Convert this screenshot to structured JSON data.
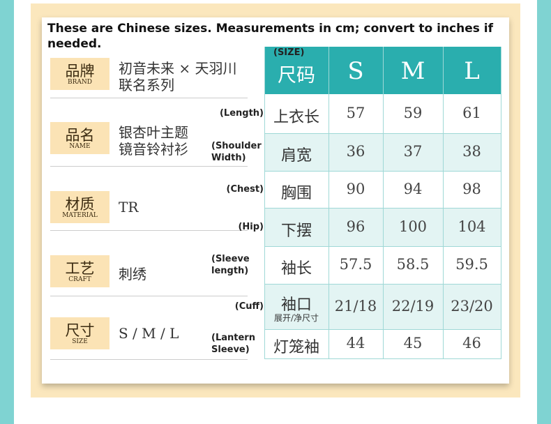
{
  "header": {
    "note": "These are Chinese sizes. Measurements in cm; convert to inches if needed."
  },
  "info": {
    "rows": [
      {
        "label": "品牌",
        "label_en": "BRAND",
        "value": [
          "初音未来 × 天羽川",
          "联名系列"
        ]
      },
      {
        "label": "品名",
        "label_en": "NAME",
        "value": [
          "银杏叶主题",
          "镜音铃衬衫"
        ]
      },
      {
        "label": "材质",
        "label_en": "MATERIAL",
        "value": [
          "TR"
        ]
      },
      {
        "label": "工艺",
        "label_en": "CRAFT",
        "value": [
          "刺绣"
        ]
      },
      {
        "label": "尺寸",
        "label_en": "SIZE",
        "value": [
          "S / M / L"
        ]
      }
    ]
  },
  "size_table": {
    "header": {
      "label_en": "(SIZE)",
      "label": "尺码",
      "sizes": [
        "S",
        "M",
        "L"
      ]
    },
    "rows": [
      {
        "label_en": [
          "(Length)"
        ],
        "label": "上衣长",
        "values": [
          "57",
          "59",
          "61"
        ]
      },
      {
        "label_en": [
          "(Shoulder",
          "Width)"
        ],
        "label": "肩宽",
        "values": [
          "36",
          "37",
          "38"
        ]
      },
      {
        "label_en": [
          "(Chest)"
        ],
        "label": "胸围",
        "values": [
          "90",
          "94",
          "98"
        ]
      },
      {
        "label_en": [
          "(Hip)"
        ],
        "label": "下摆",
        "values": [
          "96",
          "100",
          "104"
        ]
      },
      {
        "label_en": [
          "(Sleeve",
          "length)"
        ],
        "label": "袖长",
        "values": [
          "57.5",
          "58.5",
          "59.5"
        ]
      },
      {
        "label_en": [
          "(Cuff)"
        ],
        "label": "袖口",
        "sublabel": "展开/净尺寸",
        "values": [
          "21/18",
          "22/19",
          "23/20"
        ]
      },
      {
        "label_en": [
          "(Lantern",
          "Sleeve)"
        ],
        "label": "灯笼袖",
        "values": [
          "44",
          "45",
          "46"
        ]
      }
    ]
  }
}
